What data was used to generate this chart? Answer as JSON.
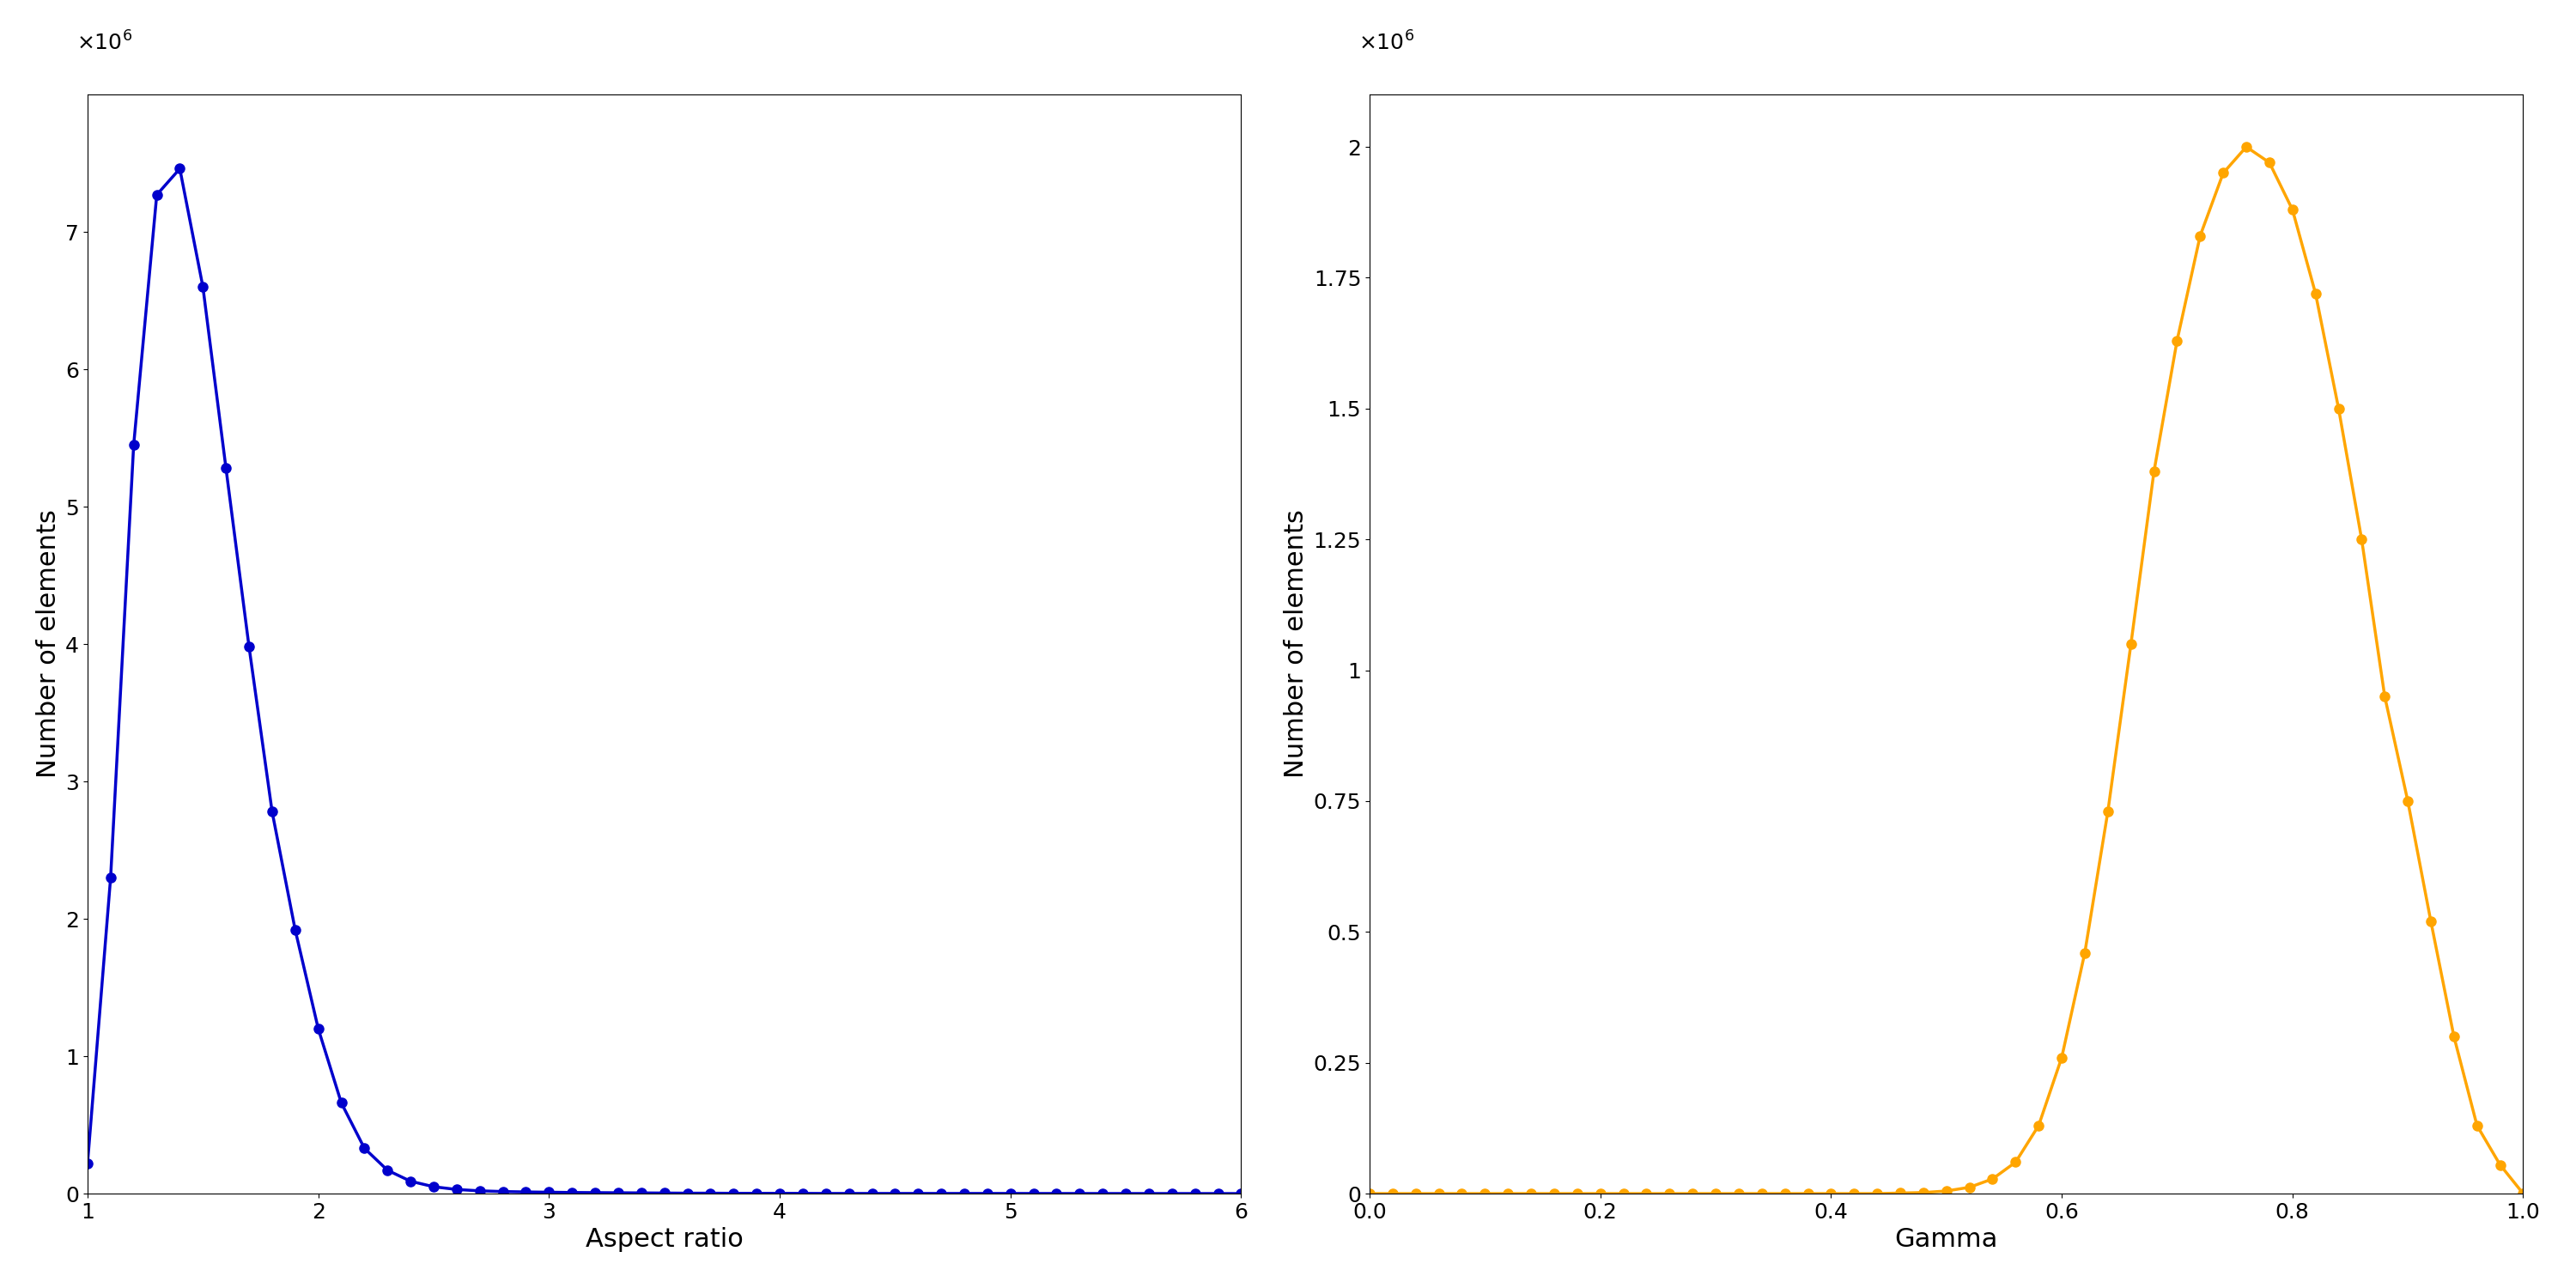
{
  "blue_x": [
    1.0,
    1.1,
    1.2,
    1.3,
    1.4,
    1.5,
    1.6,
    1.7,
    1.8,
    1.9,
    2.0,
    2.1,
    2.2,
    2.3,
    2.4,
    2.5,
    2.6,
    2.7,
    2.8,
    2.9,
    3.0,
    3.1,
    3.2,
    3.3,
    3.4,
    3.5,
    3.6,
    3.7,
    3.8,
    3.9,
    4.0,
    4.1,
    4.2,
    4.3,
    4.4,
    4.5,
    4.6,
    4.7,
    4.8,
    4.9,
    5.0,
    5.1,
    5.2,
    5.3,
    5.4,
    5.5,
    5.6,
    5.7,
    5.8,
    5.9,
    6.0
  ],
  "blue_y": [
    0.22,
    2.3,
    5.45,
    7.27,
    7.46,
    6.6,
    5.28,
    3.98,
    2.78,
    1.92,
    1.2,
    0.66,
    0.33,
    0.17,
    0.09,
    0.05,
    0.03,
    0.02,
    0.015,
    0.012,
    0.01,
    0.008,
    0.007,
    0.006,
    0.005,
    0.004,
    0.003,
    0.003,
    0.002,
    0.002,
    0.002,
    0.0015,
    0.001,
    0.001,
    0.001,
    0.001,
    0.001,
    0.001,
    0.001,
    0.001,
    0.001,
    0.0008,
    0.0007,
    0.0006,
    0.0005,
    0.0005,
    0.0004,
    0.0004,
    0.0003,
    0.0003,
    0.0002
  ],
  "orange_x": [
    0.0,
    0.02,
    0.04,
    0.06,
    0.08,
    0.1,
    0.12,
    0.14,
    0.16,
    0.18,
    0.2,
    0.22,
    0.24,
    0.26,
    0.28,
    0.3,
    0.32,
    0.34,
    0.36,
    0.38,
    0.4,
    0.42,
    0.44,
    0.46,
    0.48,
    0.5,
    0.52,
    0.54,
    0.56,
    0.58,
    0.6,
    0.62,
    0.64,
    0.66,
    0.68,
    0.7,
    0.72,
    0.74,
    0.76,
    0.78,
    0.8,
    0.82,
    0.84,
    0.86,
    0.88,
    0.9,
    0.92,
    0.94,
    0.96,
    0.98,
    1.0
  ],
  "orange_y": [
    0.0,
    0.0,
    0.0,
    0.0,
    0.0,
    0.0,
    0.0,
    0.0,
    0.0,
    0.0,
    0.0,
    0.0,
    0.0,
    0.0,
    0.0,
    0.0,
    0.0,
    0.0,
    0.0,
    0.0,
    0.0,
    0.0,
    0.0,
    0.001,
    0.002,
    0.005,
    0.012,
    0.028,
    0.06,
    0.13,
    0.26,
    0.46,
    0.73,
    1.05,
    1.38,
    1.63,
    1.83,
    1.95,
    2.0,
    1.97,
    1.88,
    1.72,
    1.5,
    1.25,
    0.95,
    0.75,
    0.52,
    0.3,
    0.13,
    0.055,
    0.0
  ],
  "blue_color": "#0000CC",
  "orange_color": "#FFA500",
  "xlabel_left": "Aspect ratio",
  "xlabel_right": "Gamma",
  "ylabel": "Number of elements",
  "xlim_left": [
    1.0,
    6.0
  ],
  "xlim_right": [
    0.0,
    1.0
  ],
  "ylim_left": [
    0,
    8000000.0
  ],
  "ylim_right": [
    0,
    2100000.0
  ],
  "xticks_left": [
    1,
    2,
    3,
    4,
    5,
    6
  ],
  "xticks_right": [
    0.0,
    0.2,
    0.4,
    0.6,
    0.8,
    1.0
  ],
  "yticks_left": [
    0,
    1000000,
    2000000,
    3000000,
    4000000,
    5000000,
    6000000,
    7000000
  ],
  "yticks_right": [
    0,
    250000,
    500000,
    750000,
    1000000,
    1250000,
    1500000,
    1750000,
    2000000
  ],
  "markersize": 8,
  "linewidth": 2.5,
  "label_fontsize": 22,
  "tick_fontsize": 18,
  "exponent_fontsize": 18
}
